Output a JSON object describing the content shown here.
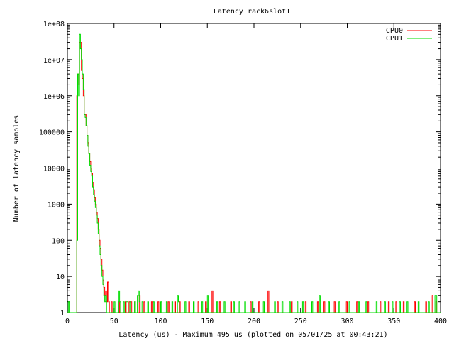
{
  "chart_data": {
    "type": "line",
    "title": "Latency rack6slot1",
    "xlabel": "Latency (us) - Maximum 495 us (plotted on 05/01/25 at 00:43:21)",
    "ylabel": "Number of latency samples",
    "xlim": [
      0,
      400
    ],
    "ylim": [
      1,
      100000000
    ],
    "yscale": "log",
    "grid": false,
    "legend_position": "top-right",
    "x_ticks": [
      0,
      50,
      100,
      150,
      200,
      250,
      300,
      350,
      400
    ],
    "y_ticks": [
      {
        "value": 1,
        "label": "1"
      },
      {
        "value": 10,
        "label": "10"
      },
      {
        "value": 100,
        "label": "100"
      },
      {
        "value": 1000,
        "label": "1000"
      },
      {
        "value": 10000,
        "label": "10000"
      },
      {
        "value": 100000,
        "label": "100000"
      },
      {
        "value": 1000000,
        "label": "1e+06"
      },
      {
        "value": 10000000,
        "label": "1e+07"
      },
      {
        "value": 100000000,
        "label": "1e+08"
      }
    ],
    "series": [
      {
        "name": "CPU0",
        "color": "#ff0000",
        "points": [
          [
            0,
            1
          ],
          [
            8,
            1
          ],
          [
            9,
            1
          ],
          [
            10,
            1000000
          ],
          [
            11,
            4000000
          ],
          [
            12,
            2000000
          ],
          [
            13,
            30000000
          ],
          [
            14,
            30000000
          ],
          [
            15,
            5000000
          ],
          [
            16,
            3000000
          ],
          [
            17,
            1000000
          ],
          [
            18,
            300000
          ],
          [
            19,
            300000
          ],
          [
            20,
            150000
          ],
          [
            21,
            80000
          ],
          [
            22,
            50000
          ],
          [
            23,
            25000
          ],
          [
            24,
            15000
          ],
          [
            25,
            10000
          ],
          [
            26,
            7000
          ],
          [
            27,
            4000
          ],
          [
            28,
            2500
          ],
          [
            29,
            1500
          ],
          [
            30,
            1000
          ],
          [
            31,
            600
          ],
          [
            32,
            400
          ],
          [
            33,
            200
          ],
          [
            34,
            100
          ],
          [
            35,
            60
          ],
          [
            36,
            30
          ],
          [
            37,
            15
          ],
          [
            38,
            8
          ],
          [
            39,
            5
          ],
          [
            40,
            3
          ],
          [
            41,
            4
          ],
          [
            42,
            2
          ],
          [
            43,
            7
          ],
          [
            44,
            2
          ],
          [
            45,
            1
          ],
          [
            47,
            2
          ],
          [
            48,
            1
          ],
          [
            55,
            2
          ],
          [
            56,
            1
          ],
          [
            62,
            2
          ],
          [
            63,
            1
          ],
          [
            66,
            2
          ],
          [
            68,
            2
          ],
          [
            69,
            1
          ],
          [
            72,
            2
          ],
          [
            73,
            1
          ],
          [
            77,
            3
          ],
          [
            78,
            1
          ],
          [
            82,
            2
          ],
          [
            83,
            1
          ],
          [
            90,
            2
          ],
          [
            91,
            1
          ],
          [
            97,
            2
          ],
          [
            98,
            1
          ],
          [
            108,
            2
          ],
          [
            109,
            1
          ],
          [
            115,
            2
          ],
          [
            116,
            1
          ],
          [
            120,
            2
          ],
          [
            121,
            1
          ],
          [
            130,
            2
          ],
          [
            131,
            1
          ],
          [
            140,
            2
          ],
          [
            141,
            1
          ],
          [
            148,
            2
          ],
          [
            149,
            1
          ],
          [
            155,
            4
          ],
          [
            156,
            1
          ],
          [
            163,
            2
          ],
          [
            164,
            1
          ],
          [
            175,
            2
          ],
          [
            176,
            1
          ],
          [
            196,
            2
          ],
          [
            197,
            1
          ],
          [
            205,
            2
          ],
          [
            206,
            1
          ],
          [
            215,
            4
          ],
          [
            216,
            1
          ],
          [
            225,
            2
          ],
          [
            226,
            1
          ],
          [
            240,
            2
          ],
          [
            241,
            1
          ],
          [
            255,
            2
          ],
          [
            256,
            1
          ],
          [
            268,
            2
          ],
          [
            269,
            1
          ],
          [
            275,
            2
          ],
          [
            276,
            1
          ],
          [
            286,
            2
          ],
          [
            287,
            1
          ],
          [
            299,
            2
          ],
          [
            300,
            1
          ],
          [
            310,
            2
          ],
          [
            311,
            1
          ],
          [
            322,
            2
          ],
          [
            323,
            1
          ],
          [
            335,
            2
          ],
          [
            336,
            1
          ],
          [
            344,
            2
          ],
          [
            345,
            1
          ],
          [
            352,
            2
          ],
          [
            353,
            1
          ],
          [
            360,
            2
          ],
          [
            361,
            1
          ],
          [
            372,
            2
          ],
          [
            373,
            1
          ],
          [
            384,
            2
          ],
          [
            385,
            1
          ],
          [
            391,
            3
          ],
          [
            392,
            1
          ],
          [
            395,
            2
          ],
          [
            396,
            1
          ],
          [
            400,
            1
          ]
        ]
      },
      {
        "name": "CPU1",
        "color": "#00dd00",
        "points": [
          [
            0,
            1
          ],
          [
            1,
            2
          ],
          [
            2,
            1
          ],
          [
            8,
            1
          ],
          [
            9,
            1
          ],
          [
            10,
            100
          ],
          [
            11,
            4000000
          ],
          [
            12,
            1000000
          ],
          [
            13,
            50000000
          ],
          [
            14,
            20000000
          ],
          [
            15,
            10000000
          ],
          [
            16,
            4000000
          ],
          [
            17,
            1500000
          ],
          [
            18,
            300000
          ],
          [
            19,
            250000
          ],
          [
            20,
            150000
          ],
          [
            21,
            80000
          ],
          [
            22,
            40000
          ],
          [
            23,
            25000
          ],
          [
            24,
            12000
          ],
          [
            25,
            8000
          ],
          [
            26,
            6000
          ],
          [
            27,
            3000
          ],
          [
            28,
            1800
          ],
          [
            29,
            1200
          ],
          [
            30,
            800
          ],
          [
            31,
            500
          ],
          [
            32,
            300
          ],
          [
            33,
            150
          ],
          [
            34,
            70
          ],
          [
            35,
            40
          ],
          [
            36,
            20
          ],
          [
            37,
            10
          ],
          [
            38,
            6
          ],
          [
            39,
            3
          ],
          [
            40,
            2
          ],
          [
            41,
            3
          ],
          [
            42,
            1
          ],
          [
            50,
            2
          ],
          [
            51,
            1
          ],
          [
            55,
            4
          ],
          [
            56,
            2
          ],
          [
            57,
            1
          ],
          [
            60,
            2
          ],
          [
            61,
            1
          ],
          [
            63,
            2
          ],
          [
            65,
            1
          ],
          [
            67,
            2
          ],
          [
            68,
            1
          ],
          [
            72,
            2
          ],
          [
            73,
            1
          ],
          [
            75,
            3
          ],
          [
            76,
            4
          ],
          [
            77,
            2
          ],
          [
            78,
            1
          ],
          [
            80,
            2
          ],
          [
            81,
            1
          ],
          [
            86,
            2
          ],
          [
            87,
            1
          ],
          [
            92,
            2
          ],
          [
            93,
            1
          ],
          [
            100,
            2
          ],
          [
            101,
            1
          ],
          [
            106,
            2
          ],
          [
            107,
            1
          ],
          [
            112,
            2
          ],
          [
            113,
            1
          ],
          [
            118,
            3
          ],
          [
            119,
            2
          ],
          [
            120,
            1
          ],
          [
            126,
            2
          ],
          [
            127,
            1
          ],
          [
            135,
            2
          ],
          [
            136,
            1
          ],
          [
            144,
            2
          ],
          [
            145,
            1
          ],
          [
            150,
            3
          ],
          [
            151,
            1
          ],
          [
            160,
            2
          ],
          [
            161,
            1
          ],
          [
            168,
            2
          ],
          [
            169,
            1
          ],
          [
            178,
            2
          ],
          [
            179,
            1
          ],
          [
            184,
            2
          ],
          [
            185,
            1
          ],
          [
            190,
            2
          ],
          [
            191,
            1
          ],
          [
            198,
            2
          ],
          [
            199,
            1
          ],
          [
            210,
            2
          ],
          [
            211,
            1
          ],
          [
            222,
            2
          ],
          [
            223,
            1
          ],
          [
            230,
            2
          ],
          [
            231,
            1
          ],
          [
            238,
            2
          ],
          [
            239,
            1
          ],
          [
            246,
            2
          ],
          [
            247,
            1
          ],
          [
            252,
            2
          ],
          [
            253,
            1
          ],
          [
            262,
            2
          ],
          [
            263,
            1
          ],
          [
            270,
            3
          ],
          [
            271,
            1
          ],
          [
            280,
            2
          ],
          [
            281,
            1
          ],
          [
            291,
            2
          ],
          [
            292,
            1
          ],
          [
            302,
            2
          ],
          [
            303,
            1
          ],
          [
            312,
            2
          ],
          [
            313,
            1
          ],
          [
            320,
            2
          ],
          [
            321,
            1
          ],
          [
            331,
            2
          ],
          [
            332,
            1
          ],
          [
            340,
            2
          ],
          [
            341,
            1
          ],
          [
            348,
            2
          ],
          [
            349,
            1
          ],
          [
            356,
            2
          ],
          [
            357,
            1
          ],
          [
            364,
            2
          ],
          [
            365,
            1
          ],
          [
            376,
            2
          ],
          [
            377,
            1
          ],
          [
            387,
            2
          ],
          [
            388,
            1
          ],
          [
            394,
            3
          ],
          [
            396,
            1
          ],
          [
            400,
            1
          ]
        ]
      }
    ]
  }
}
